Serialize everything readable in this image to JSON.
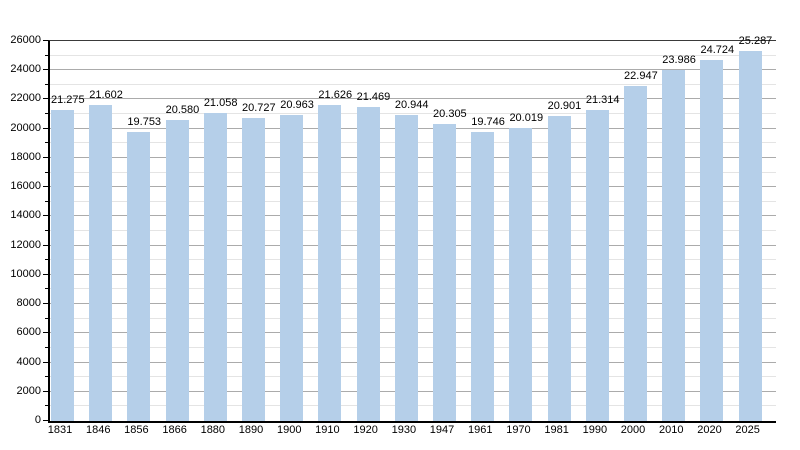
{
  "chart_data": {
    "type": "bar",
    "categories": [
      "1831",
      "1846",
      "1856",
      "1866",
      "1880",
      "1890",
      "1900",
      "1910",
      "1920",
      "1930",
      "1947",
      "1961",
      "1970",
      "1981",
      "1990",
      "2000",
      "2010",
      "2020",
      "2025"
    ],
    "values": [
      21275,
      21602,
      19753,
      20580,
      21058,
      20727,
      20963,
      21626,
      21469,
      20944,
      20305,
      19746,
      20019,
      20901,
      21314,
      22947,
      23986,
      24724,
      25287
    ],
    "bar_labels": [
      "21.275",
      "21.602",
      "19.753",
      "20.580",
      "21.058",
      "20.727",
      "20.963",
      "21.626",
      "21.469",
      "20.944",
      "20.305",
      "19.746",
      "20.019",
      "20.901",
      "21.314",
      "22.947",
      "23.986",
      "24.724",
      "25.287"
    ],
    "xlabel": "",
    "ylabel": "",
    "ylim": [
      0,
      26000
    ],
    "y_major_step": 2000,
    "y_minor_step": 1000,
    "y_tick_labels": [
      "0",
      "2000",
      "4000",
      "6000",
      "8000",
      "10000",
      "12000",
      "14000",
      "16000",
      "18000",
      "20000",
      "22000",
      "24000",
      "26000"
    ],
    "grid": true,
    "legend": "none",
    "colors": {
      "bar": "#b5cfe9",
      "major_grid": "#ababab",
      "minor_grid": "#e4e4e4",
      "axis": "#000000",
      "top_frame": "#3a3a3a",
      "text": "#000000",
      "background": "#ffffff"
    }
  }
}
